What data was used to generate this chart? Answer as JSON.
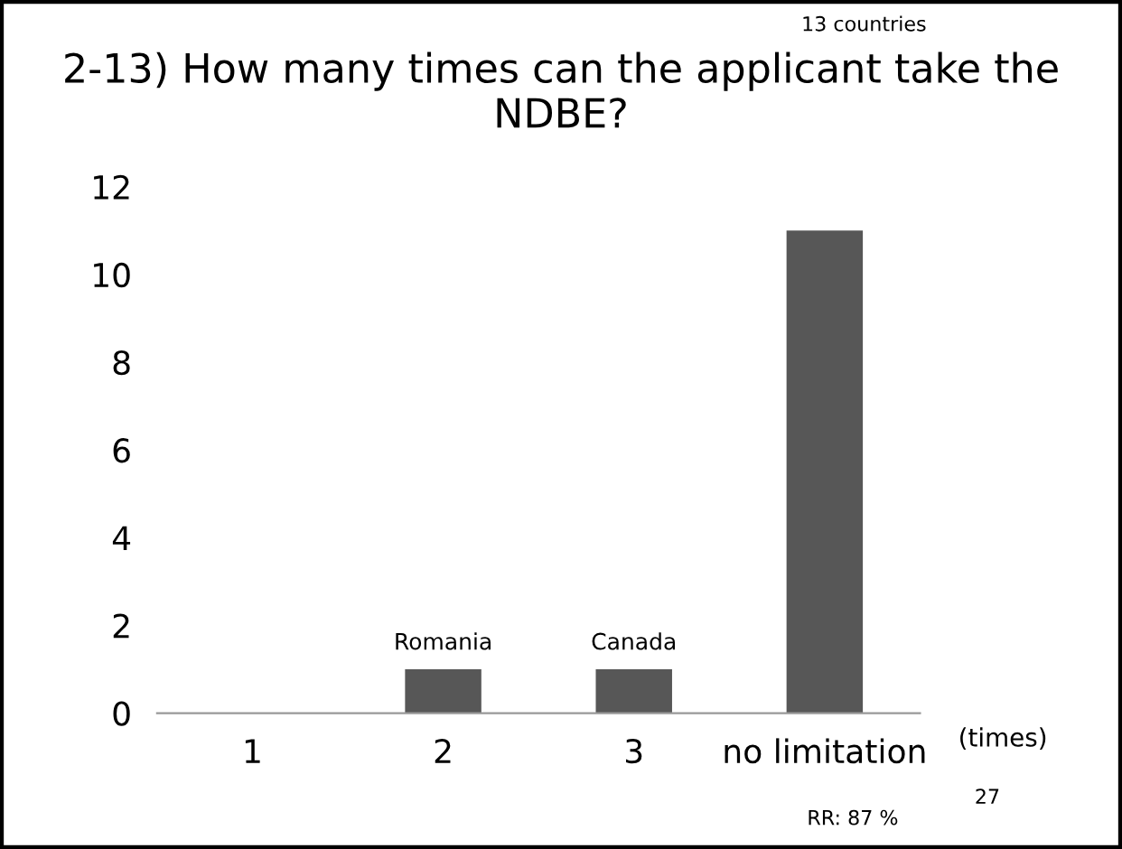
{
  "chart_data": {
    "type": "bar",
    "title": "2-13) How many times can the applicant take the NDBE?",
    "categories": [
      "1",
      "2",
      "3",
      "no limitation"
    ],
    "values": [
      0,
      1,
      1,
      11
    ],
    "color": "#575757",
    "xlabel": "(times)",
    "ylim": [
      0,
      12
    ],
    "yticks": [
      0,
      2,
      4,
      6,
      8,
      10,
      12
    ],
    "grid": false,
    "annotations": [
      {
        "text": "Romania",
        "x": "2",
        "y": 1
      },
      {
        "text": "Canada",
        "x": "3",
        "y": 1
      },
      "13 countries",
      "RR: 87 %",
      "27"
    ]
  }
}
